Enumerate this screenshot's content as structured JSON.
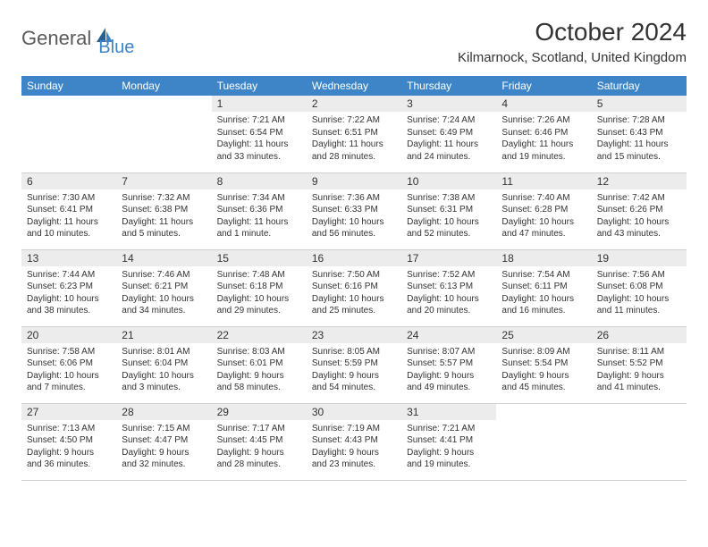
{
  "logo": {
    "text1": "General",
    "text2": "Blue"
  },
  "title": "October 2024",
  "location": "Kilmarnock, Scotland, United Kingdom",
  "weekdays": [
    "Sunday",
    "Monday",
    "Tuesday",
    "Wednesday",
    "Thursday",
    "Friday",
    "Saturday"
  ],
  "colors": {
    "header_bg": "#3d85c6",
    "header_text": "#ffffff",
    "daynum_bg": "#ececec",
    "border": "#d0d0d0",
    "logo_gray": "#5a5a5a",
    "logo_blue": "#3d85c6"
  },
  "weeks": [
    [
      {
        "n": "",
        "sunrise": "",
        "sunset": "",
        "daylight": ""
      },
      {
        "n": "",
        "sunrise": "",
        "sunset": "",
        "daylight": ""
      },
      {
        "n": "1",
        "sunrise": "Sunrise: 7:21 AM",
        "sunset": "Sunset: 6:54 PM",
        "daylight": "Daylight: 11 hours and 33 minutes."
      },
      {
        "n": "2",
        "sunrise": "Sunrise: 7:22 AM",
        "sunset": "Sunset: 6:51 PM",
        "daylight": "Daylight: 11 hours and 28 minutes."
      },
      {
        "n": "3",
        "sunrise": "Sunrise: 7:24 AM",
        "sunset": "Sunset: 6:49 PM",
        "daylight": "Daylight: 11 hours and 24 minutes."
      },
      {
        "n": "4",
        "sunrise": "Sunrise: 7:26 AM",
        "sunset": "Sunset: 6:46 PM",
        "daylight": "Daylight: 11 hours and 19 minutes."
      },
      {
        "n": "5",
        "sunrise": "Sunrise: 7:28 AM",
        "sunset": "Sunset: 6:43 PM",
        "daylight": "Daylight: 11 hours and 15 minutes."
      }
    ],
    [
      {
        "n": "6",
        "sunrise": "Sunrise: 7:30 AM",
        "sunset": "Sunset: 6:41 PM",
        "daylight": "Daylight: 11 hours and 10 minutes."
      },
      {
        "n": "7",
        "sunrise": "Sunrise: 7:32 AM",
        "sunset": "Sunset: 6:38 PM",
        "daylight": "Daylight: 11 hours and 5 minutes."
      },
      {
        "n": "8",
        "sunrise": "Sunrise: 7:34 AM",
        "sunset": "Sunset: 6:36 PM",
        "daylight": "Daylight: 11 hours and 1 minute."
      },
      {
        "n": "9",
        "sunrise": "Sunrise: 7:36 AM",
        "sunset": "Sunset: 6:33 PM",
        "daylight": "Daylight: 10 hours and 56 minutes."
      },
      {
        "n": "10",
        "sunrise": "Sunrise: 7:38 AM",
        "sunset": "Sunset: 6:31 PM",
        "daylight": "Daylight: 10 hours and 52 minutes."
      },
      {
        "n": "11",
        "sunrise": "Sunrise: 7:40 AM",
        "sunset": "Sunset: 6:28 PM",
        "daylight": "Daylight: 10 hours and 47 minutes."
      },
      {
        "n": "12",
        "sunrise": "Sunrise: 7:42 AM",
        "sunset": "Sunset: 6:26 PM",
        "daylight": "Daylight: 10 hours and 43 minutes."
      }
    ],
    [
      {
        "n": "13",
        "sunrise": "Sunrise: 7:44 AM",
        "sunset": "Sunset: 6:23 PM",
        "daylight": "Daylight: 10 hours and 38 minutes."
      },
      {
        "n": "14",
        "sunrise": "Sunrise: 7:46 AM",
        "sunset": "Sunset: 6:21 PM",
        "daylight": "Daylight: 10 hours and 34 minutes."
      },
      {
        "n": "15",
        "sunrise": "Sunrise: 7:48 AM",
        "sunset": "Sunset: 6:18 PM",
        "daylight": "Daylight: 10 hours and 29 minutes."
      },
      {
        "n": "16",
        "sunrise": "Sunrise: 7:50 AM",
        "sunset": "Sunset: 6:16 PM",
        "daylight": "Daylight: 10 hours and 25 minutes."
      },
      {
        "n": "17",
        "sunrise": "Sunrise: 7:52 AM",
        "sunset": "Sunset: 6:13 PM",
        "daylight": "Daylight: 10 hours and 20 minutes."
      },
      {
        "n": "18",
        "sunrise": "Sunrise: 7:54 AM",
        "sunset": "Sunset: 6:11 PM",
        "daylight": "Daylight: 10 hours and 16 minutes."
      },
      {
        "n": "19",
        "sunrise": "Sunrise: 7:56 AM",
        "sunset": "Sunset: 6:08 PM",
        "daylight": "Daylight: 10 hours and 11 minutes."
      }
    ],
    [
      {
        "n": "20",
        "sunrise": "Sunrise: 7:58 AM",
        "sunset": "Sunset: 6:06 PM",
        "daylight": "Daylight: 10 hours and 7 minutes."
      },
      {
        "n": "21",
        "sunrise": "Sunrise: 8:01 AM",
        "sunset": "Sunset: 6:04 PM",
        "daylight": "Daylight: 10 hours and 3 minutes."
      },
      {
        "n": "22",
        "sunrise": "Sunrise: 8:03 AM",
        "sunset": "Sunset: 6:01 PM",
        "daylight": "Daylight: 9 hours and 58 minutes."
      },
      {
        "n": "23",
        "sunrise": "Sunrise: 8:05 AM",
        "sunset": "Sunset: 5:59 PM",
        "daylight": "Daylight: 9 hours and 54 minutes."
      },
      {
        "n": "24",
        "sunrise": "Sunrise: 8:07 AM",
        "sunset": "Sunset: 5:57 PM",
        "daylight": "Daylight: 9 hours and 49 minutes."
      },
      {
        "n": "25",
        "sunrise": "Sunrise: 8:09 AM",
        "sunset": "Sunset: 5:54 PM",
        "daylight": "Daylight: 9 hours and 45 minutes."
      },
      {
        "n": "26",
        "sunrise": "Sunrise: 8:11 AM",
        "sunset": "Sunset: 5:52 PM",
        "daylight": "Daylight: 9 hours and 41 minutes."
      }
    ],
    [
      {
        "n": "27",
        "sunrise": "Sunrise: 7:13 AM",
        "sunset": "Sunset: 4:50 PM",
        "daylight": "Daylight: 9 hours and 36 minutes."
      },
      {
        "n": "28",
        "sunrise": "Sunrise: 7:15 AM",
        "sunset": "Sunset: 4:47 PM",
        "daylight": "Daylight: 9 hours and 32 minutes."
      },
      {
        "n": "29",
        "sunrise": "Sunrise: 7:17 AM",
        "sunset": "Sunset: 4:45 PM",
        "daylight": "Daylight: 9 hours and 28 minutes."
      },
      {
        "n": "30",
        "sunrise": "Sunrise: 7:19 AM",
        "sunset": "Sunset: 4:43 PM",
        "daylight": "Daylight: 9 hours and 23 minutes."
      },
      {
        "n": "31",
        "sunrise": "Sunrise: 7:21 AM",
        "sunset": "Sunset: 4:41 PM",
        "daylight": "Daylight: 9 hours and 19 minutes."
      },
      {
        "n": "",
        "sunrise": "",
        "sunset": "",
        "daylight": ""
      },
      {
        "n": "",
        "sunrise": "",
        "sunset": "",
        "daylight": ""
      }
    ]
  ]
}
